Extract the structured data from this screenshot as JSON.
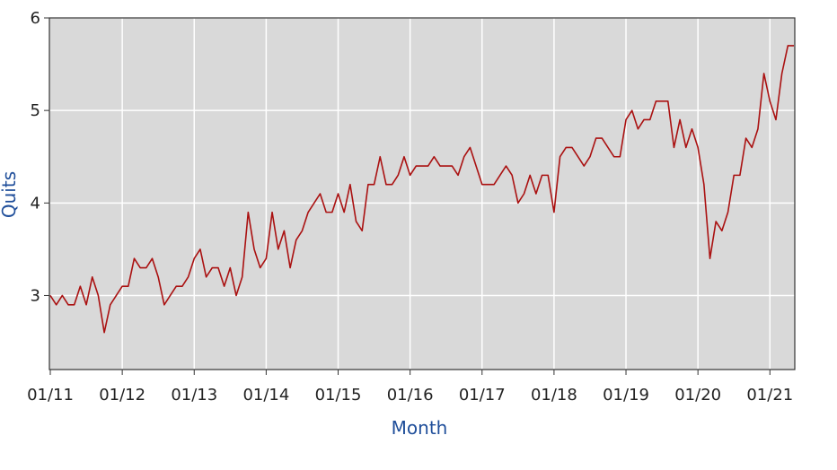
{
  "chart_data": {
    "type": "line",
    "title": "",
    "xlabel": "Month",
    "ylabel": "Quits",
    "ylim": [
      2.2,
      6
    ],
    "yticks": [
      3,
      4,
      5,
      6
    ],
    "xtick_labels": [
      "01/11",
      "01/12",
      "01/13",
      "01/14",
      "01/15",
      "01/16",
      "01/17",
      "01/18",
      "01/19",
      "01/20",
      "01/21"
    ],
    "x_start": "2011-01",
    "x_end": "2021-05",
    "grid": true,
    "legend": "none",
    "colors": {
      "line": "#aa1111",
      "plot_background": "#d9d9d9",
      "grid": "#ffffff",
      "axis_title": "#1f4e9a",
      "frame": "#333333"
    },
    "series": [
      {
        "x": [
          "2011-01",
          "2011-02",
          "2011-03",
          "2011-04",
          "2011-05",
          "2011-06",
          "2011-07",
          "2011-08",
          "2011-09",
          "2011-10",
          "2011-11",
          "2011-12",
          "2012-01",
          "2012-02",
          "2012-03",
          "2012-04",
          "2012-05",
          "2012-06",
          "2012-07",
          "2012-08",
          "2012-09",
          "2012-10",
          "2012-11",
          "2012-12",
          "2013-01",
          "2013-02",
          "2013-03",
          "2013-04",
          "2013-05",
          "2013-06",
          "2013-07",
          "2013-08",
          "2013-09",
          "2013-10",
          "2013-11",
          "2013-12",
          "2014-01",
          "2014-02",
          "2014-03",
          "2014-04",
          "2014-05",
          "2014-06",
          "2014-07",
          "2014-08",
          "2014-09",
          "2014-10",
          "2014-11",
          "2014-12",
          "2015-01",
          "2015-02",
          "2015-03",
          "2015-04",
          "2015-05",
          "2015-06",
          "2015-07",
          "2015-08",
          "2015-09",
          "2015-10",
          "2015-11",
          "2015-12",
          "2016-01",
          "2016-02",
          "2016-03",
          "2016-04",
          "2016-05",
          "2016-06",
          "2016-07",
          "2016-08",
          "2016-09",
          "2016-10",
          "2016-11",
          "2016-12",
          "2017-01",
          "2017-02",
          "2017-03",
          "2017-04",
          "2017-05",
          "2017-06",
          "2017-07",
          "2017-08",
          "2017-09",
          "2017-10",
          "2017-11",
          "2017-12",
          "2018-01",
          "2018-02",
          "2018-03",
          "2018-04",
          "2018-05",
          "2018-06",
          "2018-07",
          "2018-08",
          "2018-09",
          "2018-10",
          "2018-11",
          "2018-12",
          "2019-01",
          "2019-02",
          "2019-03",
          "2019-04",
          "2019-05",
          "2019-06",
          "2019-07",
          "2019-08",
          "2019-09",
          "2019-10",
          "2019-11",
          "2019-12",
          "2020-01",
          "2020-02",
          "2020-03",
          "2020-04",
          "2020-05",
          "2020-06",
          "2020-07",
          "2020-08",
          "2020-09",
          "2020-10",
          "2020-11",
          "2020-12",
          "2021-01",
          "2021-02",
          "2021-03",
          "2021-04",
          "2021-05"
        ],
        "values": [
          3.0,
          2.9,
          3.0,
          2.9,
          2.9,
          3.1,
          2.9,
          3.2,
          3.0,
          2.6,
          2.9,
          3.0,
          3.1,
          3.1,
          3.4,
          3.3,
          3.3,
          3.4,
          3.2,
          2.9,
          3.0,
          3.1,
          3.1,
          3.2,
          3.4,
          3.5,
          3.2,
          3.3,
          3.3,
          3.1,
          3.3,
          3.0,
          3.2,
          3.9,
          3.5,
          3.3,
          3.4,
          3.9,
          3.5,
          3.7,
          3.3,
          3.6,
          3.7,
          3.9,
          4.0,
          4.1,
          3.9,
          3.9,
          4.1,
          3.9,
          4.2,
          3.8,
          3.7,
          4.2,
          4.2,
          4.5,
          4.2,
          4.2,
          4.3,
          4.5,
          4.3,
          4.4,
          4.4,
          4.4,
          4.5,
          4.4,
          4.4,
          4.4,
          4.3,
          4.5,
          4.6,
          4.4,
          4.2,
          4.2,
          4.2,
          4.3,
          4.4,
          4.3,
          4.0,
          4.1,
          4.3,
          4.1,
          4.3,
          4.3,
          3.9,
          4.5,
          4.6,
          4.6,
          4.5,
          4.4,
          4.5,
          4.7,
          4.7,
          4.6,
          4.5,
          4.5,
          4.9,
          5.0,
          4.8,
          4.9,
          4.9,
          5.1,
          5.1,
          5.1,
          4.6,
          4.9,
          4.6,
          4.8,
          4.6,
          4.2,
          3.4,
          3.8,
          3.7,
          3.9,
          4.3,
          4.3,
          4.7,
          4.6,
          4.8,
          5.4,
          5.1,
          4.9,
          5.4,
          5.7,
          5.7
        ]
      }
    ]
  }
}
